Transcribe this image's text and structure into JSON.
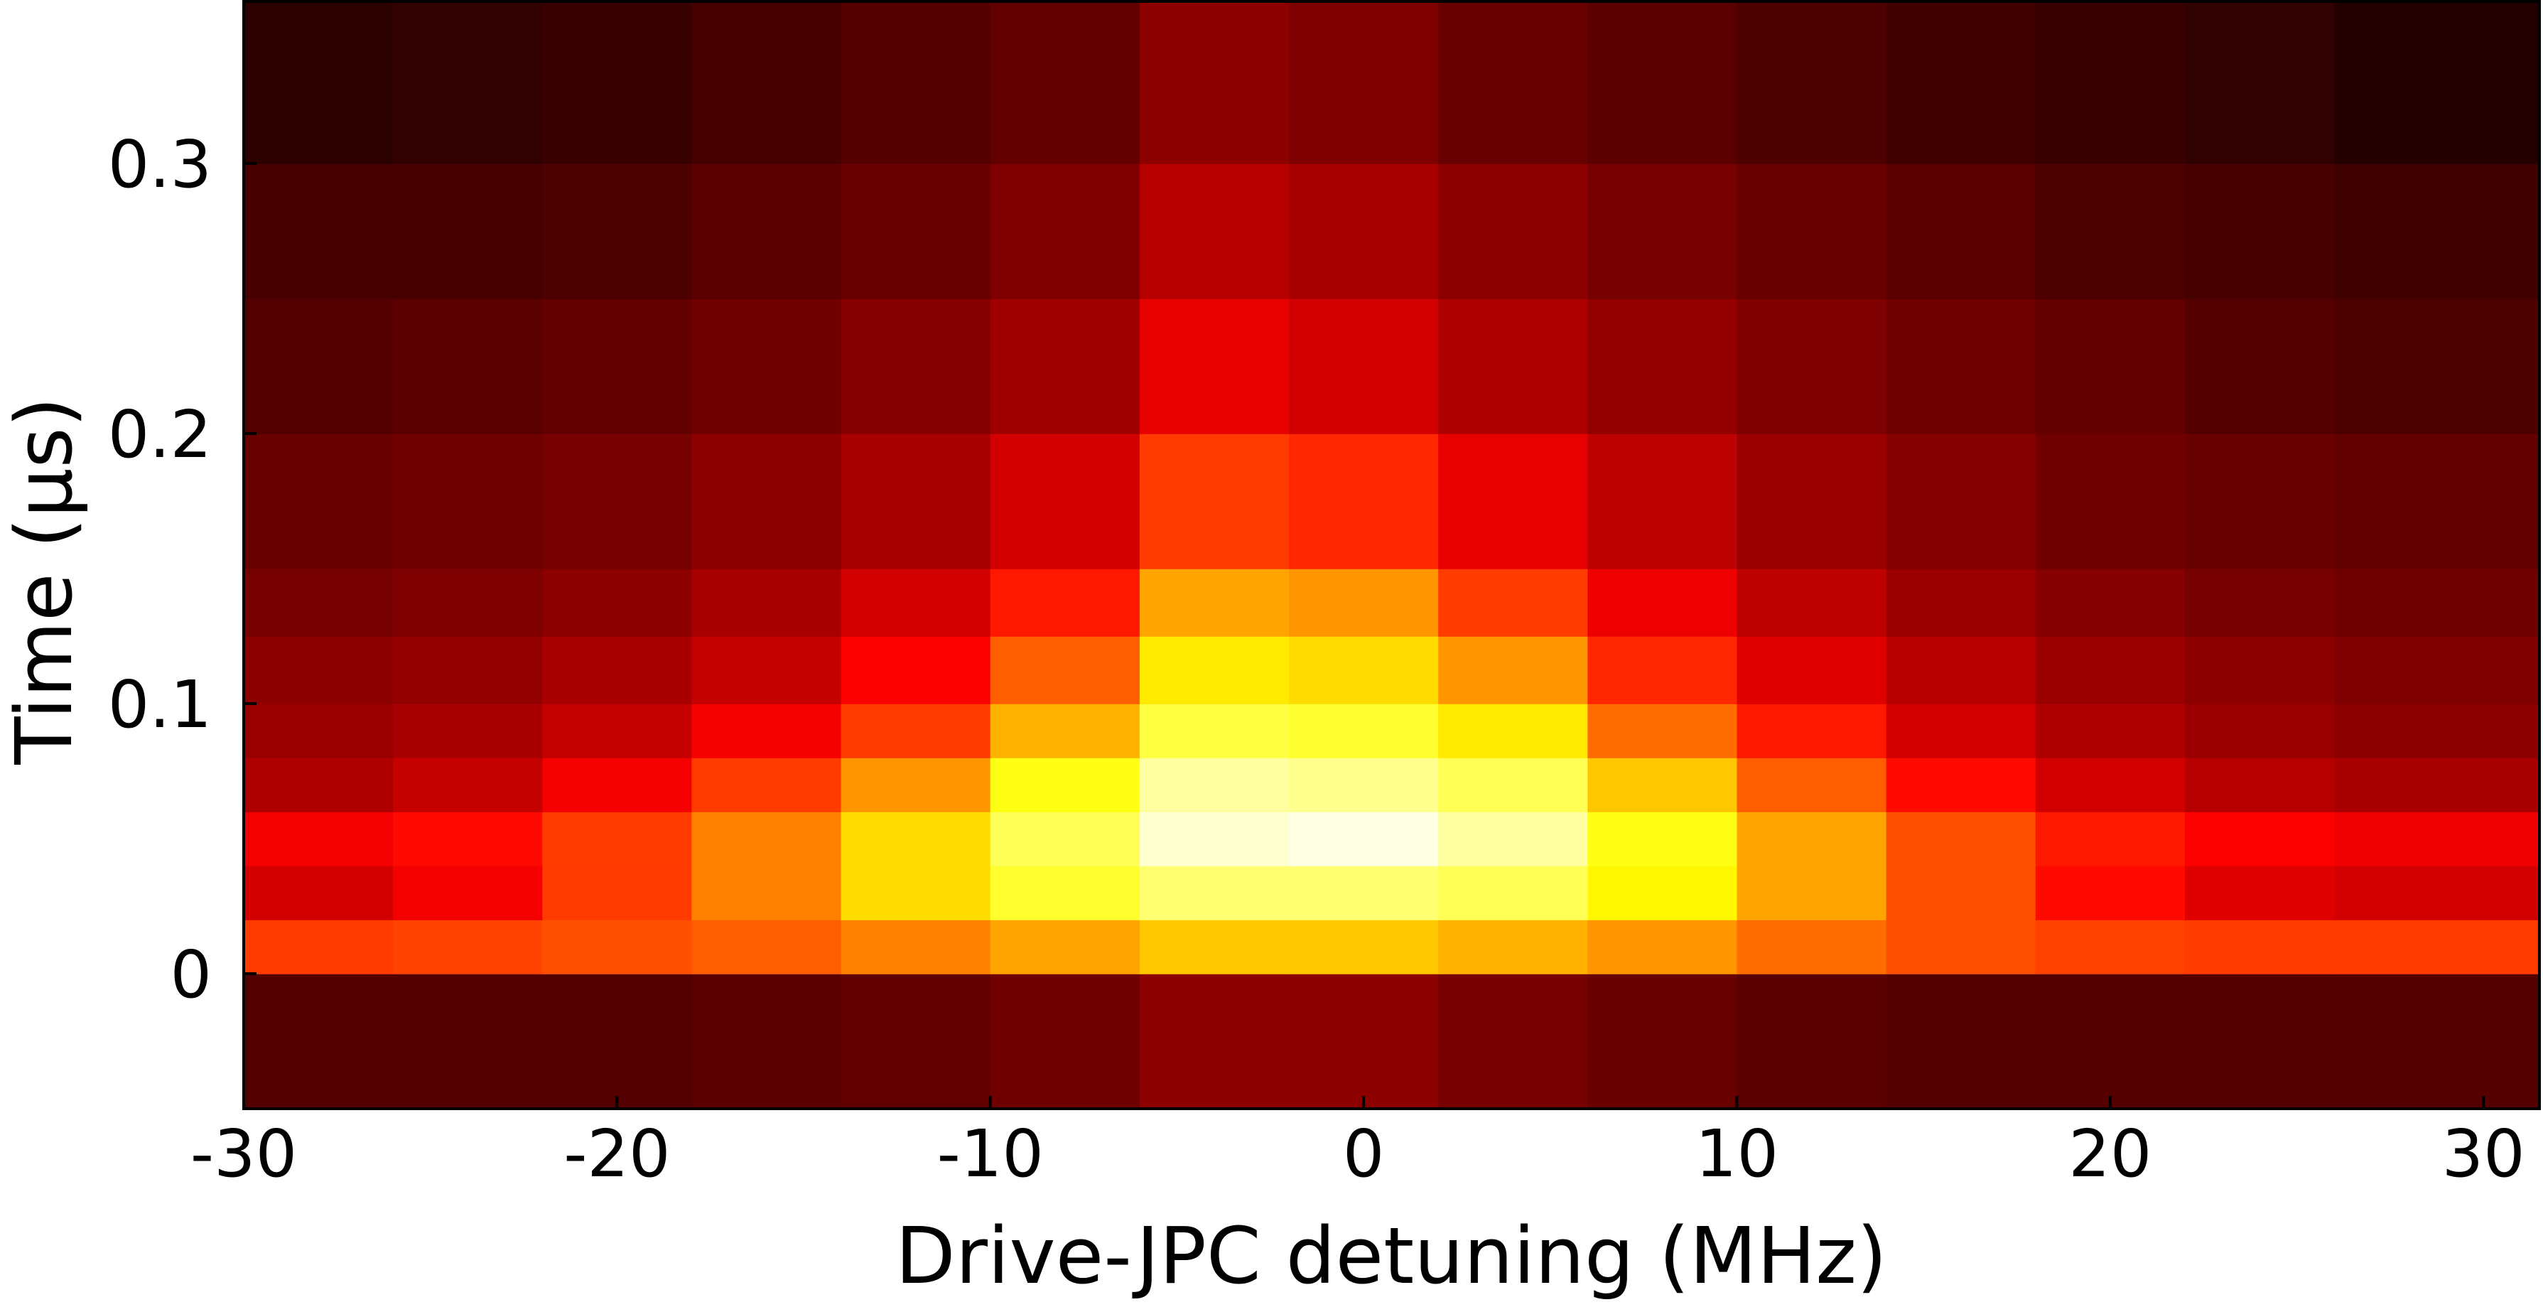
{
  "chart_data": {
    "type": "heatmap",
    "xlabel": "Drive-JPC detuning (MHz)",
    "ylabel": "Time (µs)",
    "colormap": "hot",
    "x_edges": [
      -30,
      -26,
      -22,
      -18,
      -14,
      -10,
      -6,
      -2,
      2,
      6,
      10,
      14,
      18,
      22,
      26,
      31.5
    ],
    "y_edges": [
      -0.05,
      0,
      0.02,
      0.04,
      0.06,
      0.08,
      0.1,
      0.125,
      0.15,
      0.2,
      0.25,
      0.3,
      0.36
    ],
    "z": [
      [
        0.12,
        0.12,
        0.12,
        0.13,
        0.14,
        0.16,
        0.2,
        0.2,
        0.17,
        0.15,
        0.13,
        0.12,
        0.12,
        0.12,
        0.12
      ],
      [
        0.45,
        0.46,
        0.48,
        0.5,
        0.55,
        0.6,
        0.65,
        0.65,
        0.62,
        0.58,
        0.52,
        0.48,
        0.46,
        0.45,
        0.45
      ],
      [
        0.3,
        0.35,
        0.45,
        0.55,
        0.68,
        0.78,
        0.85,
        0.85,
        0.82,
        0.72,
        0.6,
        0.48,
        0.38,
        0.32,
        0.3
      ],
      [
        0.35,
        0.38,
        0.45,
        0.55,
        0.68,
        0.82,
        0.95,
        0.97,
        0.9,
        0.75,
        0.6,
        0.48,
        0.4,
        0.36,
        0.34
      ],
      [
        0.25,
        0.28,
        0.35,
        0.45,
        0.58,
        0.75,
        0.9,
        0.88,
        0.82,
        0.65,
        0.5,
        0.38,
        0.3,
        0.26,
        0.24
      ],
      [
        0.22,
        0.24,
        0.28,
        0.35,
        0.45,
        0.62,
        0.8,
        0.78,
        0.7,
        0.52,
        0.4,
        0.3,
        0.25,
        0.22,
        0.2
      ],
      [
        0.2,
        0.21,
        0.24,
        0.28,
        0.36,
        0.5,
        0.7,
        0.68,
        0.58,
        0.42,
        0.32,
        0.26,
        0.22,
        0.2,
        0.18
      ],
      [
        0.17,
        0.18,
        0.2,
        0.24,
        0.3,
        0.4,
        0.6,
        0.58,
        0.45,
        0.34,
        0.27,
        0.22,
        0.19,
        0.17,
        0.16
      ],
      [
        0.15,
        0.16,
        0.17,
        0.2,
        0.24,
        0.3,
        0.45,
        0.42,
        0.33,
        0.27,
        0.22,
        0.19,
        0.16,
        0.15,
        0.14
      ],
      [
        0.12,
        0.13,
        0.14,
        0.16,
        0.19,
        0.23,
        0.33,
        0.3,
        0.25,
        0.21,
        0.18,
        0.16,
        0.14,
        0.12,
        0.11
      ],
      [
        0.1,
        0.1,
        0.11,
        0.13,
        0.15,
        0.18,
        0.26,
        0.24,
        0.2,
        0.17,
        0.15,
        0.13,
        0.11,
        0.1,
        0.09
      ],
      [
        0.06,
        0.07,
        0.08,
        0.1,
        0.12,
        0.14,
        0.2,
        0.18,
        0.15,
        0.13,
        0.11,
        0.09,
        0.08,
        0.07,
        0.05
      ]
    ],
    "xlim": [
      -30,
      31.5
    ],
    "ylim": [
      -0.05,
      0.36
    ],
    "xticks": [
      -30,
      -20,
      -10,
      0,
      10,
      20,
      30
    ],
    "yticks": [
      0,
      0.1,
      0.2,
      0.3
    ]
  }
}
